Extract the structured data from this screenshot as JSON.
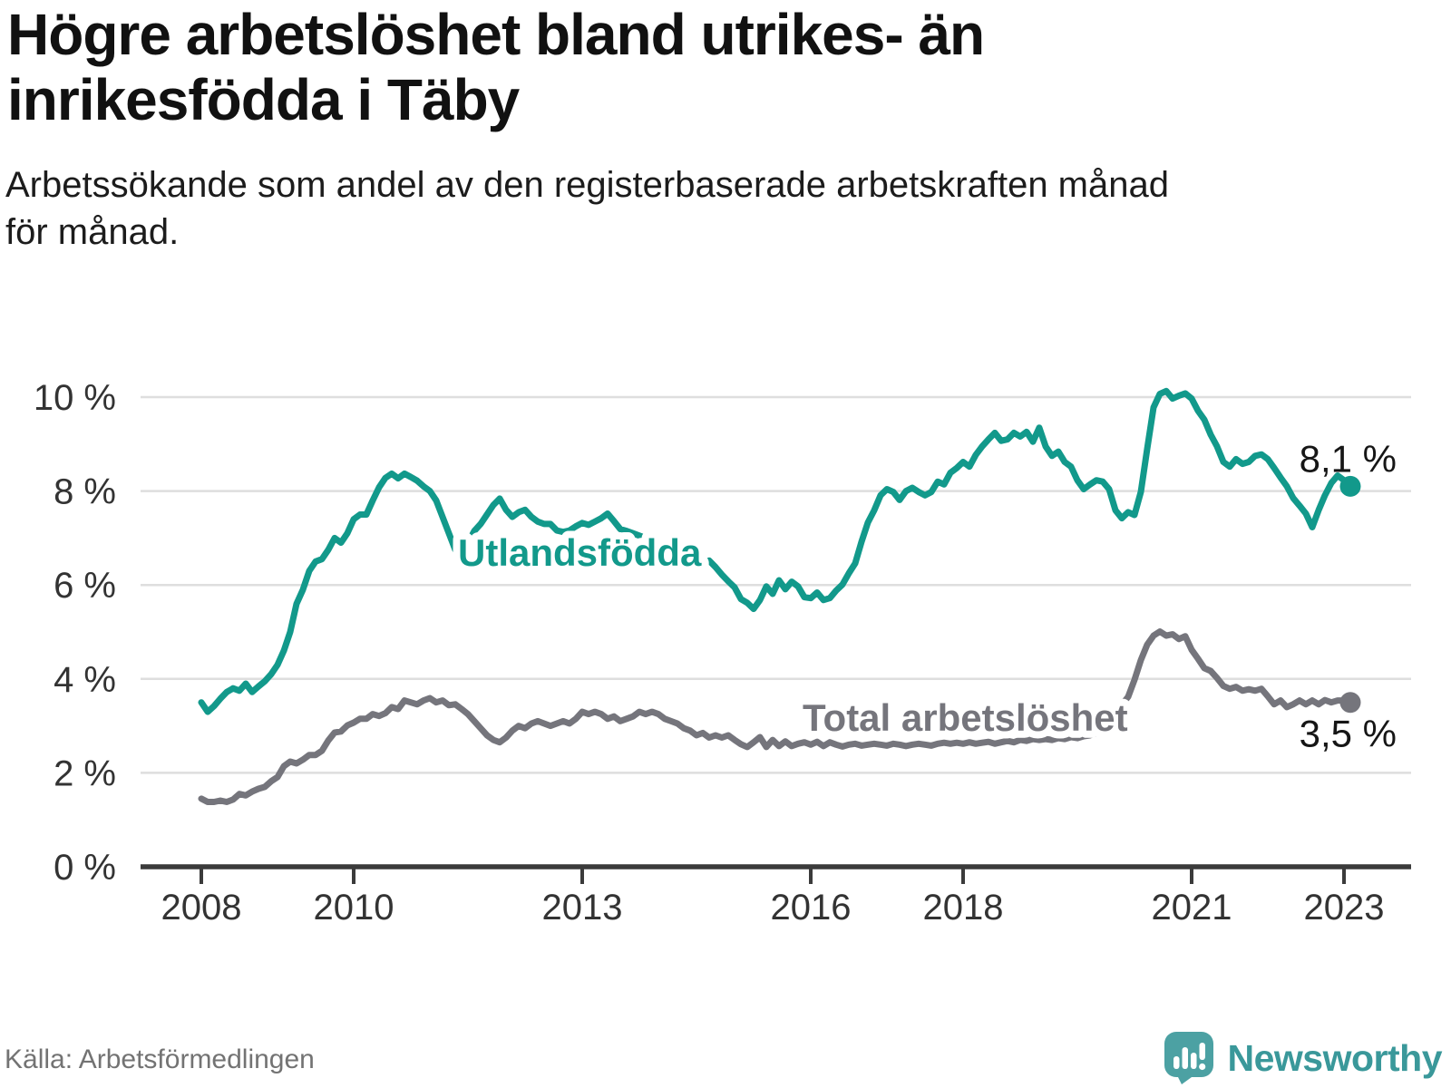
{
  "title": "Högre arbetslöshet bland utrikes- än\ninrikesfödda i Täby",
  "subtitle": "Arbetssökande som andel av den registerbaserade arbetskraften månad\nför månad.",
  "source_note": "Källa: Arbetsförmedlingen",
  "brand": {
    "name": "Newsworthy",
    "pin_color": "#4CA1A3",
    "text_color": "#3A989A"
  },
  "colors": {
    "utlandsfodda": "#12998B",
    "total": "#75757C",
    "axis": "#3B3B3B",
    "grid": "#DEDEDE",
    "tick_text": "#333333",
    "value_text": "#161616"
  },
  "chart_data": {
    "type": "line",
    "frequency": "monthly",
    "x_start": "2008-01",
    "x_end": "2023-02",
    "ylim": [
      0,
      10.3
    ],
    "grid": "horizontal",
    "y_ticks": [
      {
        "value": 0,
        "label": "0 %"
      },
      {
        "value": 2,
        "label": "2 %"
      },
      {
        "value": 4,
        "label": "4 %"
      },
      {
        "value": 6,
        "label": "6 %"
      },
      {
        "value": 8,
        "label": "8 %"
      },
      {
        "value": 10,
        "label": "10 %"
      }
    ],
    "x_ticks": [
      {
        "year": 2008,
        "label": "2008"
      },
      {
        "year": 2010,
        "label": "2010"
      },
      {
        "year": 2013,
        "label": "2013"
      },
      {
        "year": 2016,
        "label": "2016"
      },
      {
        "year": 2018,
        "label": "2018"
      },
      {
        "year": 2021,
        "label": "2021"
      },
      {
        "year": 2023,
        "label": "2023"
      }
    ],
    "series": [
      {
        "name": "Utlandsfödda",
        "color": "#12998B",
        "end_label": "8,1 %",
        "values": [
          3.5,
          3.3,
          3.42,
          3.58,
          3.72,
          3.8,
          3.75,
          3.9,
          3.72,
          3.84,
          3.95,
          4.1,
          4.3,
          4.6,
          5.0,
          5.6,
          5.9,
          6.3,
          6.5,
          6.55,
          6.75,
          7.0,
          6.9,
          7.1,
          7.4,
          7.5,
          7.5,
          7.8,
          8.08,
          8.28,
          8.37,
          8.27,
          8.37,
          8.3,
          8.22,
          8.1,
          8.0,
          7.8,
          7.45,
          7.1,
          6.75,
          6.57,
          6.9,
          7.15,
          7.3,
          7.5,
          7.7,
          7.84,
          7.6,
          7.45,
          7.55,
          7.6,
          7.45,
          7.35,
          7.3,
          7.3,
          7.16,
          7.13,
          7.16,
          7.25,
          7.32,
          7.28,
          7.35,
          7.42,
          7.52,
          7.36,
          7.19,
          7.15,
          7.1,
          7.05,
          7.0,
          6.95,
          6.9,
          6.85,
          6.78,
          6.7,
          6.62,
          6.55,
          6.48,
          6.4,
          6.52,
          6.38,
          6.22,
          6.08,
          5.95,
          5.7,
          5.62,
          5.49,
          5.68,
          5.97,
          5.81,
          6.1,
          5.91,
          6.07,
          5.97,
          5.74,
          5.72,
          5.84,
          5.68,
          5.72,
          5.88,
          6.01,
          6.25,
          6.46,
          6.92,
          7.33,
          7.59,
          7.91,
          8.04,
          7.98,
          7.81,
          8.0,
          8.07,
          7.98,
          7.91,
          7.98,
          8.2,
          8.14,
          8.39,
          8.49,
          8.62,
          8.52,
          8.77,
          8.95,
          9.1,
          9.24,
          9.07,
          9.1,
          9.24,
          9.16,
          9.26,
          9.05,
          9.35,
          8.95,
          8.75,
          8.84,
          8.62,
          8.52,
          8.23,
          8.04,
          8.14,
          8.23,
          8.2,
          8.04,
          7.59,
          7.42,
          7.55,
          7.49,
          7.98,
          8.9,
          9.78,
          10.07,
          10.13,
          9.97,
          10.03,
          10.08,
          9.97,
          9.71,
          9.52,
          9.2,
          8.95,
          8.62,
          8.52,
          8.68,
          8.58,
          8.62,
          8.75,
          8.78,
          8.68,
          8.49,
          8.29,
          8.1,
          7.85,
          7.69,
          7.52,
          7.23,
          7.59,
          7.91,
          8.17,
          8.33,
          8.23,
          8.1
        ]
      },
      {
        "name": "Total arbetslöshet",
        "color": "#75757C",
        "end_label": "3,5 %",
        "values": [
          1.45,
          1.38,
          1.38,
          1.41,
          1.38,
          1.43,
          1.55,
          1.52,
          1.6,
          1.66,
          1.7,
          1.82,
          1.91,
          2.14,
          2.24,
          2.2,
          2.28,
          2.38,
          2.38,
          2.47,
          2.69,
          2.86,
          2.88,
          3.01,
          3.07,
          3.15,
          3.15,
          3.25,
          3.21,
          3.27,
          3.4,
          3.36,
          3.54,
          3.5,
          3.46,
          3.54,
          3.59,
          3.5,
          3.54,
          3.44,
          3.46,
          3.36,
          3.25,
          3.1,
          2.95,
          2.8,
          2.7,
          2.65,
          2.75,
          2.9,
          3.0,
          2.95,
          3.05,
          3.1,
          3.05,
          3.0,
          3.05,
          3.1,
          3.05,
          3.15,
          3.3,
          3.25,
          3.3,
          3.25,
          3.15,
          3.2,
          3.1,
          3.15,
          3.2,
          3.3,
          3.25,
          3.3,
          3.25,
          3.15,
          3.1,
          3.05,
          2.95,
          2.9,
          2.8,
          2.85,
          2.75,
          2.8,
          2.75,
          2.8,
          2.7,
          2.61,
          2.55,
          2.65,
          2.76,
          2.55,
          2.7,
          2.57,
          2.67,
          2.57,
          2.62,
          2.65,
          2.6,
          2.66,
          2.57,
          2.65,
          2.6,
          2.56,
          2.6,
          2.62,
          2.58,
          2.6,
          2.62,
          2.6,
          2.58,
          2.62,
          2.6,
          2.57,
          2.6,
          2.62,
          2.6,
          2.58,
          2.62,
          2.64,
          2.62,
          2.64,
          2.62,
          2.65,
          2.62,
          2.64,
          2.66,
          2.62,
          2.65,
          2.68,
          2.65,
          2.7,
          2.68,
          2.72,
          2.7,
          2.72,
          2.7,
          2.74,
          2.72,
          2.76,
          2.74,
          2.78,
          2.8,
          2.85,
          2.92,
          3.05,
          3.24,
          3.45,
          3.62,
          3.98,
          4.4,
          4.73,
          4.92,
          5.01,
          4.92,
          4.95,
          4.85,
          4.91,
          4.62,
          4.43,
          4.23,
          4.17,
          4.02,
          3.85,
          3.79,
          3.83,
          3.75,
          3.78,
          3.75,
          3.79,
          3.63,
          3.46,
          3.54,
          3.4,
          3.46,
          3.54,
          3.46,
          3.54,
          3.46,
          3.55,
          3.5,
          3.54,
          3.54,
          3.5
        ]
      }
    ]
  }
}
